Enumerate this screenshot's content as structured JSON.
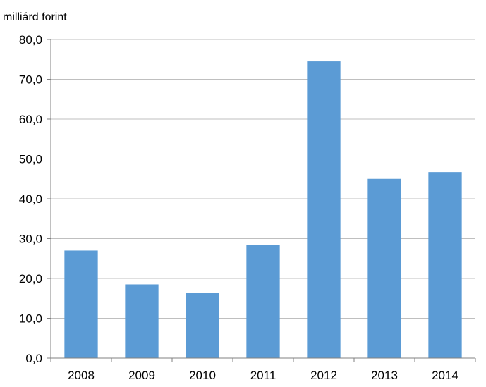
{
  "chart_data": {
    "type": "bar",
    "title": "",
    "xlabel": "",
    "ylabel": "milliárd forint",
    "categories": [
      "2008",
      "2009",
      "2010",
      "2011",
      "2012",
      "2013",
      "2014"
    ],
    "values": [
      27.0,
      18.5,
      16.4,
      28.4,
      74.5,
      45.0,
      46.7
    ],
    "ylim": [
      0,
      80
    ],
    "yticks": [
      "0,0",
      "10,0",
      "20,0",
      "30,0",
      "40,0",
      "50,0",
      "60,0",
      "70,0",
      "80,0"
    ],
    "grid": "horizontal",
    "legend": "none",
    "colors": {
      "bar": "#5b9bd5",
      "grid": "#bfbfbf",
      "axis": "#808080"
    }
  }
}
